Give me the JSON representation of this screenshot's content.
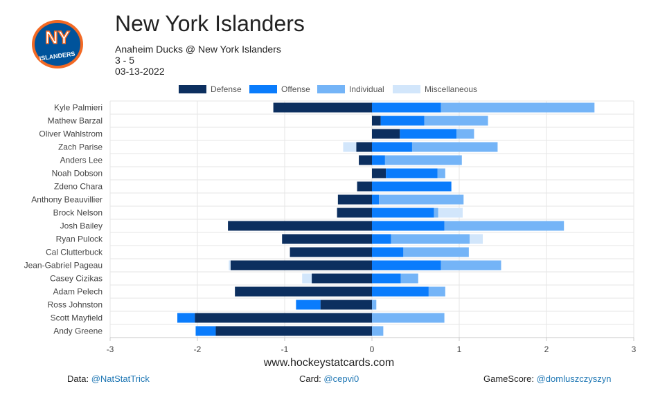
{
  "header": {
    "title": "New York Islanders",
    "matchup": "Anaheim Ducks @ New York Islanders",
    "score": "3 - 5",
    "date": "03-13-2022",
    "logo_text": "NY",
    "logo_sub": "ISLANDERS"
  },
  "colors": {
    "defense": "#0c2f5f",
    "offense": "#0a7cfc",
    "individual": "#74b4f7",
    "miscellaneous": "#d2e6fb",
    "logo_orange": "#f26924",
    "logo_blue": "#00539b"
  },
  "legend": [
    {
      "label": "Defense",
      "color": "#0c2f5f"
    },
    {
      "label": "Offense",
      "color": "#0a7cfc"
    },
    {
      "label": "Individual",
      "color": "#74b4f7"
    },
    {
      "label": "Miscellaneous",
      "color": "#d2e6fb"
    }
  ],
  "chart_data": {
    "type": "bar",
    "orientation": "horizontal",
    "stacked": true,
    "xlim": [
      -3,
      3
    ],
    "xticks": [
      "-3",
      "-2",
      "-1",
      "0",
      "1",
      "2",
      "3"
    ],
    "grid": true,
    "legend_position": "top",
    "categories": [
      "Kyle Palmieri",
      "Mathew Barzal",
      "Oliver Wahlstrom",
      "Zach Parise",
      "Anders Lee",
      "Noah Dobson",
      "Zdeno Chara",
      "Anthony Beauvillier",
      "Brock Nelson",
      "Josh Bailey",
      "Ryan Pulock",
      "Cal Clutterbuck",
      "Jean-Gabriel Pageau",
      "Casey Cizikas",
      "Adam Pelech",
      "Ross Johnston",
      "Scott Mayfield",
      "Andy Greene"
    ],
    "series": [
      {
        "name": "Defense",
        "values": [
          -1.13,
          0.1,
          0.32,
          -0.18,
          -0.15,
          0.16,
          -0.17,
          -0.39,
          -0.4,
          -1.65,
          -1.03,
          -0.94,
          -1.62,
          -0.69,
          -1.57,
          -0.59,
          -2.03,
          -1.79
        ]
      },
      {
        "name": "Offense",
        "values": [
          0.79,
          0.5,
          0.65,
          0.46,
          0.15,
          0.59,
          0.91,
          0.08,
          0.71,
          0.83,
          0.22,
          0.36,
          0.79,
          0.33,
          0.65,
          -0.28,
          -0.2,
          -0.23
        ]
      },
      {
        "name": "Individual",
        "values": [
          1.76,
          0.73,
          0.2,
          0.98,
          0.88,
          0.09,
          0.0,
          0.97,
          0.05,
          1.37,
          0.9,
          0.75,
          0.69,
          0.2,
          0.19,
          0.05,
          0.83,
          0.13
        ]
      },
      {
        "name": "Miscellaneous",
        "values": [
          0.0,
          0.0,
          0.0,
          -0.15,
          0.0,
          0.0,
          0.0,
          0.0,
          0.28,
          0.0,
          0.15,
          0.0,
          -0.02,
          -0.11,
          0.0,
          0.0,
          0.0,
          0.0
        ]
      }
    ]
  },
  "footer": {
    "site": "www.hockeystatcards.com",
    "data_label": "Data: ",
    "data_handle": "@NatStatTrick",
    "card_label": "Card: ",
    "card_handle": "@cepvi0",
    "gamescore_label": "GameScore: ",
    "gamescore_handle": "@domluszczyszyn"
  }
}
